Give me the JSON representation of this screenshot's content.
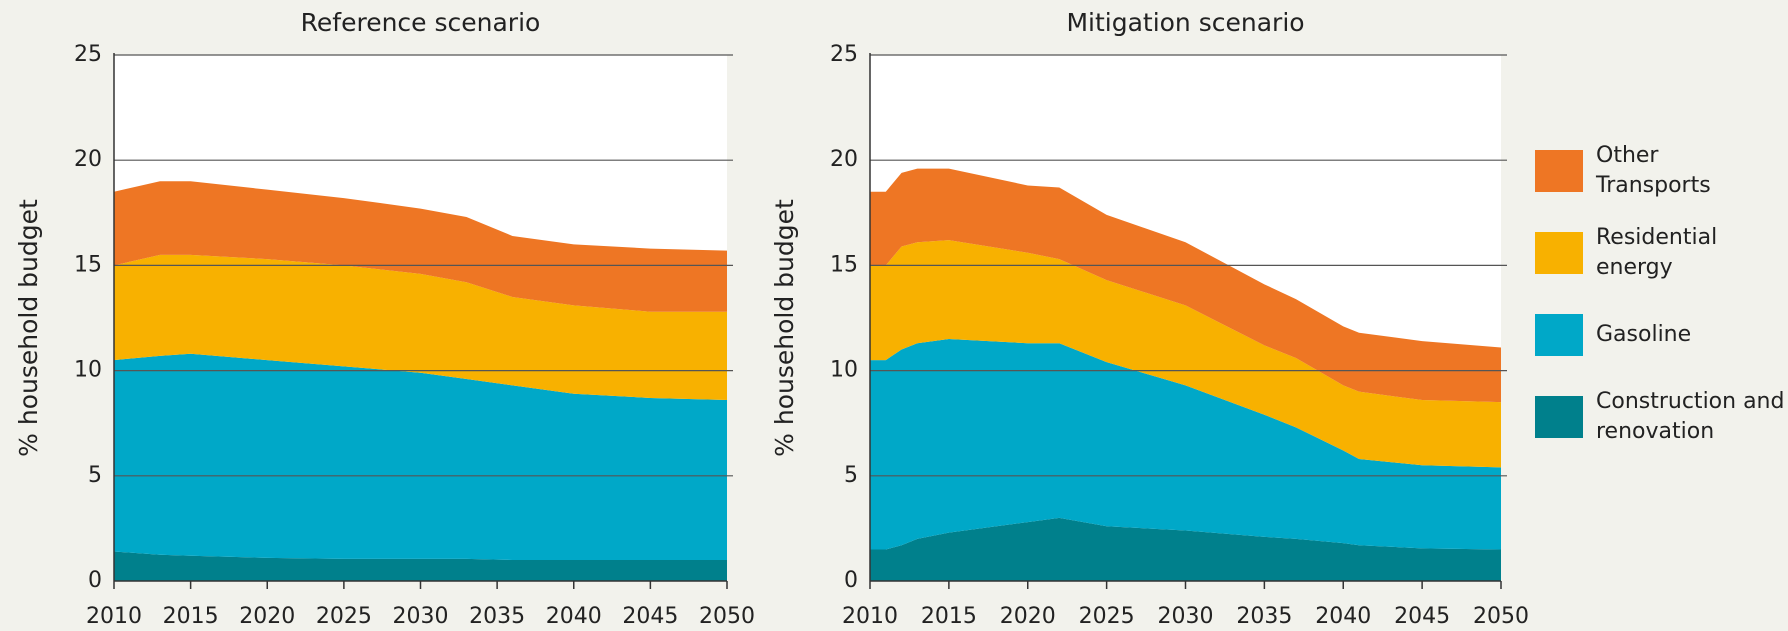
{
  "chart_data": [
    {
      "type": "stacked_area",
      "title": "Reference scenario",
      "y_label": "% household budget",
      "x": [
        2010,
        2013,
        2015,
        2020,
        2025,
        2030,
        2033,
        2036,
        2040,
        2045,
        2050
      ],
      "series": [
        {
          "name": "Construction and renovation",
          "color": "#00808c",
          "values": [
            1.4,
            1.25,
            1.2,
            1.1,
            1.05,
            1.05,
            1.05,
            1.0,
            1.0,
            1.0,
            1.0
          ]
        },
        {
          "name": "Gasoline",
          "color": "#00a8c8",
          "values": [
            9.1,
            9.45,
            9.6,
            9.4,
            9.15,
            8.85,
            8.55,
            8.3,
            7.9,
            7.7,
            7.6
          ]
        },
        {
          "name": "Residential energy",
          "color": "#f8b100",
          "values": [
            4.5,
            4.8,
            4.7,
            4.8,
            4.8,
            4.7,
            4.6,
            4.2,
            4.2,
            4.1,
            4.2
          ]
        },
        {
          "name": "Other Transports",
          "color": "#ee7624",
          "values": [
            3.5,
            3.5,
            3.5,
            3.3,
            3.2,
            3.1,
            3.1,
            2.9,
            2.9,
            3.0,
            2.9
          ]
        }
      ],
      "xlim": [
        2010,
        2050
      ],
      "xticks": [
        2010,
        2015,
        2020,
        2025,
        2030,
        2035,
        2040,
        2045,
        2050
      ],
      "ylim": [
        0,
        25
      ],
      "yticks": [
        0,
        5,
        10,
        15,
        20,
        25
      ],
      "grid": true
    },
    {
      "type": "stacked_area",
      "title": "Mitigation scenario",
      "y_label": "% household budget",
      "x": [
        2010,
        2011,
        2012,
        2013,
        2015,
        2020,
        2022,
        2025,
        2030,
        2035,
        2037,
        2040,
        2041,
        2045,
        2050
      ],
      "series": [
        {
          "name": "Construction and renovation",
          "color": "#00808c",
          "values": [
            1.5,
            1.5,
            1.7,
            2.0,
            2.3,
            2.8,
            3.0,
            2.6,
            2.4,
            2.1,
            2.0,
            1.8,
            1.7,
            1.55,
            1.5
          ]
        },
        {
          "name": "Gasoline",
          "color": "#00a8c8",
          "values": [
            9.0,
            9.0,
            9.3,
            9.3,
            9.2,
            8.5,
            8.3,
            7.8,
            6.9,
            5.8,
            5.3,
            4.4,
            4.1,
            3.95,
            3.9
          ]
        },
        {
          "name": "Residential energy",
          "color": "#f8b100",
          "values": [
            4.5,
            4.5,
            4.9,
            4.8,
            4.7,
            4.3,
            4.0,
            3.9,
            3.8,
            3.3,
            3.3,
            3.1,
            3.2,
            3.1,
            3.1
          ]
        },
        {
          "name": "Other Transports",
          "color": "#ee7624",
          "values": [
            3.5,
            3.5,
            3.5,
            3.5,
            3.4,
            3.2,
            3.4,
            3.1,
            3.0,
            2.9,
            2.8,
            2.8,
            2.8,
            2.8,
            2.6
          ]
        }
      ],
      "xlim": [
        2010,
        2050
      ],
      "xticks": [
        2010,
        2015,
        2020,
        2025,
        2030,
        2035,
        2040,
        2045,
        2050
      ],
      "ylim": [
        0,
        25
      ],
      "yticks": [
        0,
        5,
        10,
        15,
        20,
        25
      ],
      "grid": true
    }
  ]
}
